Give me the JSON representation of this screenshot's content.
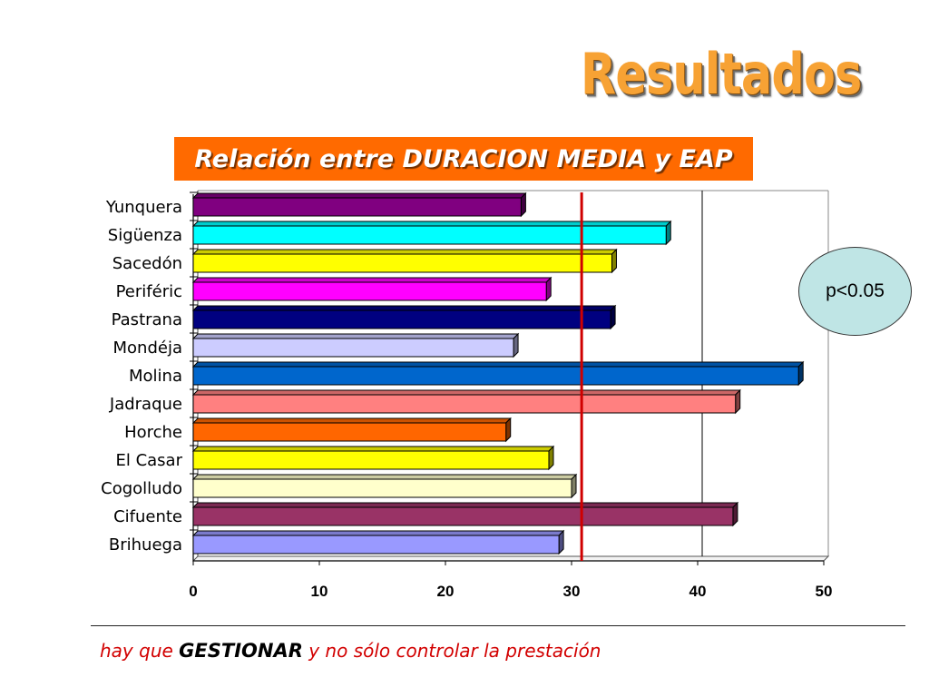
{
  "slide": {
    "title": "Resultados",
    "banner": "Relación entre DURACION MEDIA y EAP",
    "significance": "p<0.05",
    "footer": {
      "part1": "hay que ",
      "emphasis": "GESTIONAR",
      "part2": "  y no sólo controlar la prestación"
    }
  },
  "colors": {
    "title": "#f7a234",
    "banner_bg": "#ff6a00",
    "reference_line": "#d00000",
    "bubble_fill": "#bfe5e5",
    "footer_text": "#d20000"
  },
  "chart_data": {
    "type": "bar",
    "orientation": "horizontal",
    "title": "Relación entre DURACION MEDIA y EAP",
    "categories": [
      "Yunquera",
      "Sigüenza",
      "Sacedón",
      "Periféric",
      "Pastrana",
      "Mondéja",
      "Molina",
      "Jadraque",
      "Horche",
      "El Casar",
      "Cogolludo",
      "Cifuente",
      "Brihuega"
    ],
    "values": [
      26,
      37.5,
      33.2,
      28,
      33.1,
      25.4,
      48,
      43,
      24.8,
      28.2,
      30,
      42.8,
      29
    ],
    "bar_colors": [
      "#800080",
      "#00ffff",
      "#ffff00",
      "#ff00ff",
      "#000080",
      "#ccccff",
      "#0066cc",
      "#ff8080",
      "#ff6600",
      "#ffff00",
      "#ffffcc",
      "#993366",
      "#9999ff"
    ],
    "xlim": [
      0,
      50
    ],
    "xticks": [
      "0",
      "10",
      "20",
      "30",
      "40",
      "50"
    ],
    "reference_line": 30.8,
    "gridlines_x": [
      40
    ],
    "xlabel": "",
    "ylabel": ""
  }
}
